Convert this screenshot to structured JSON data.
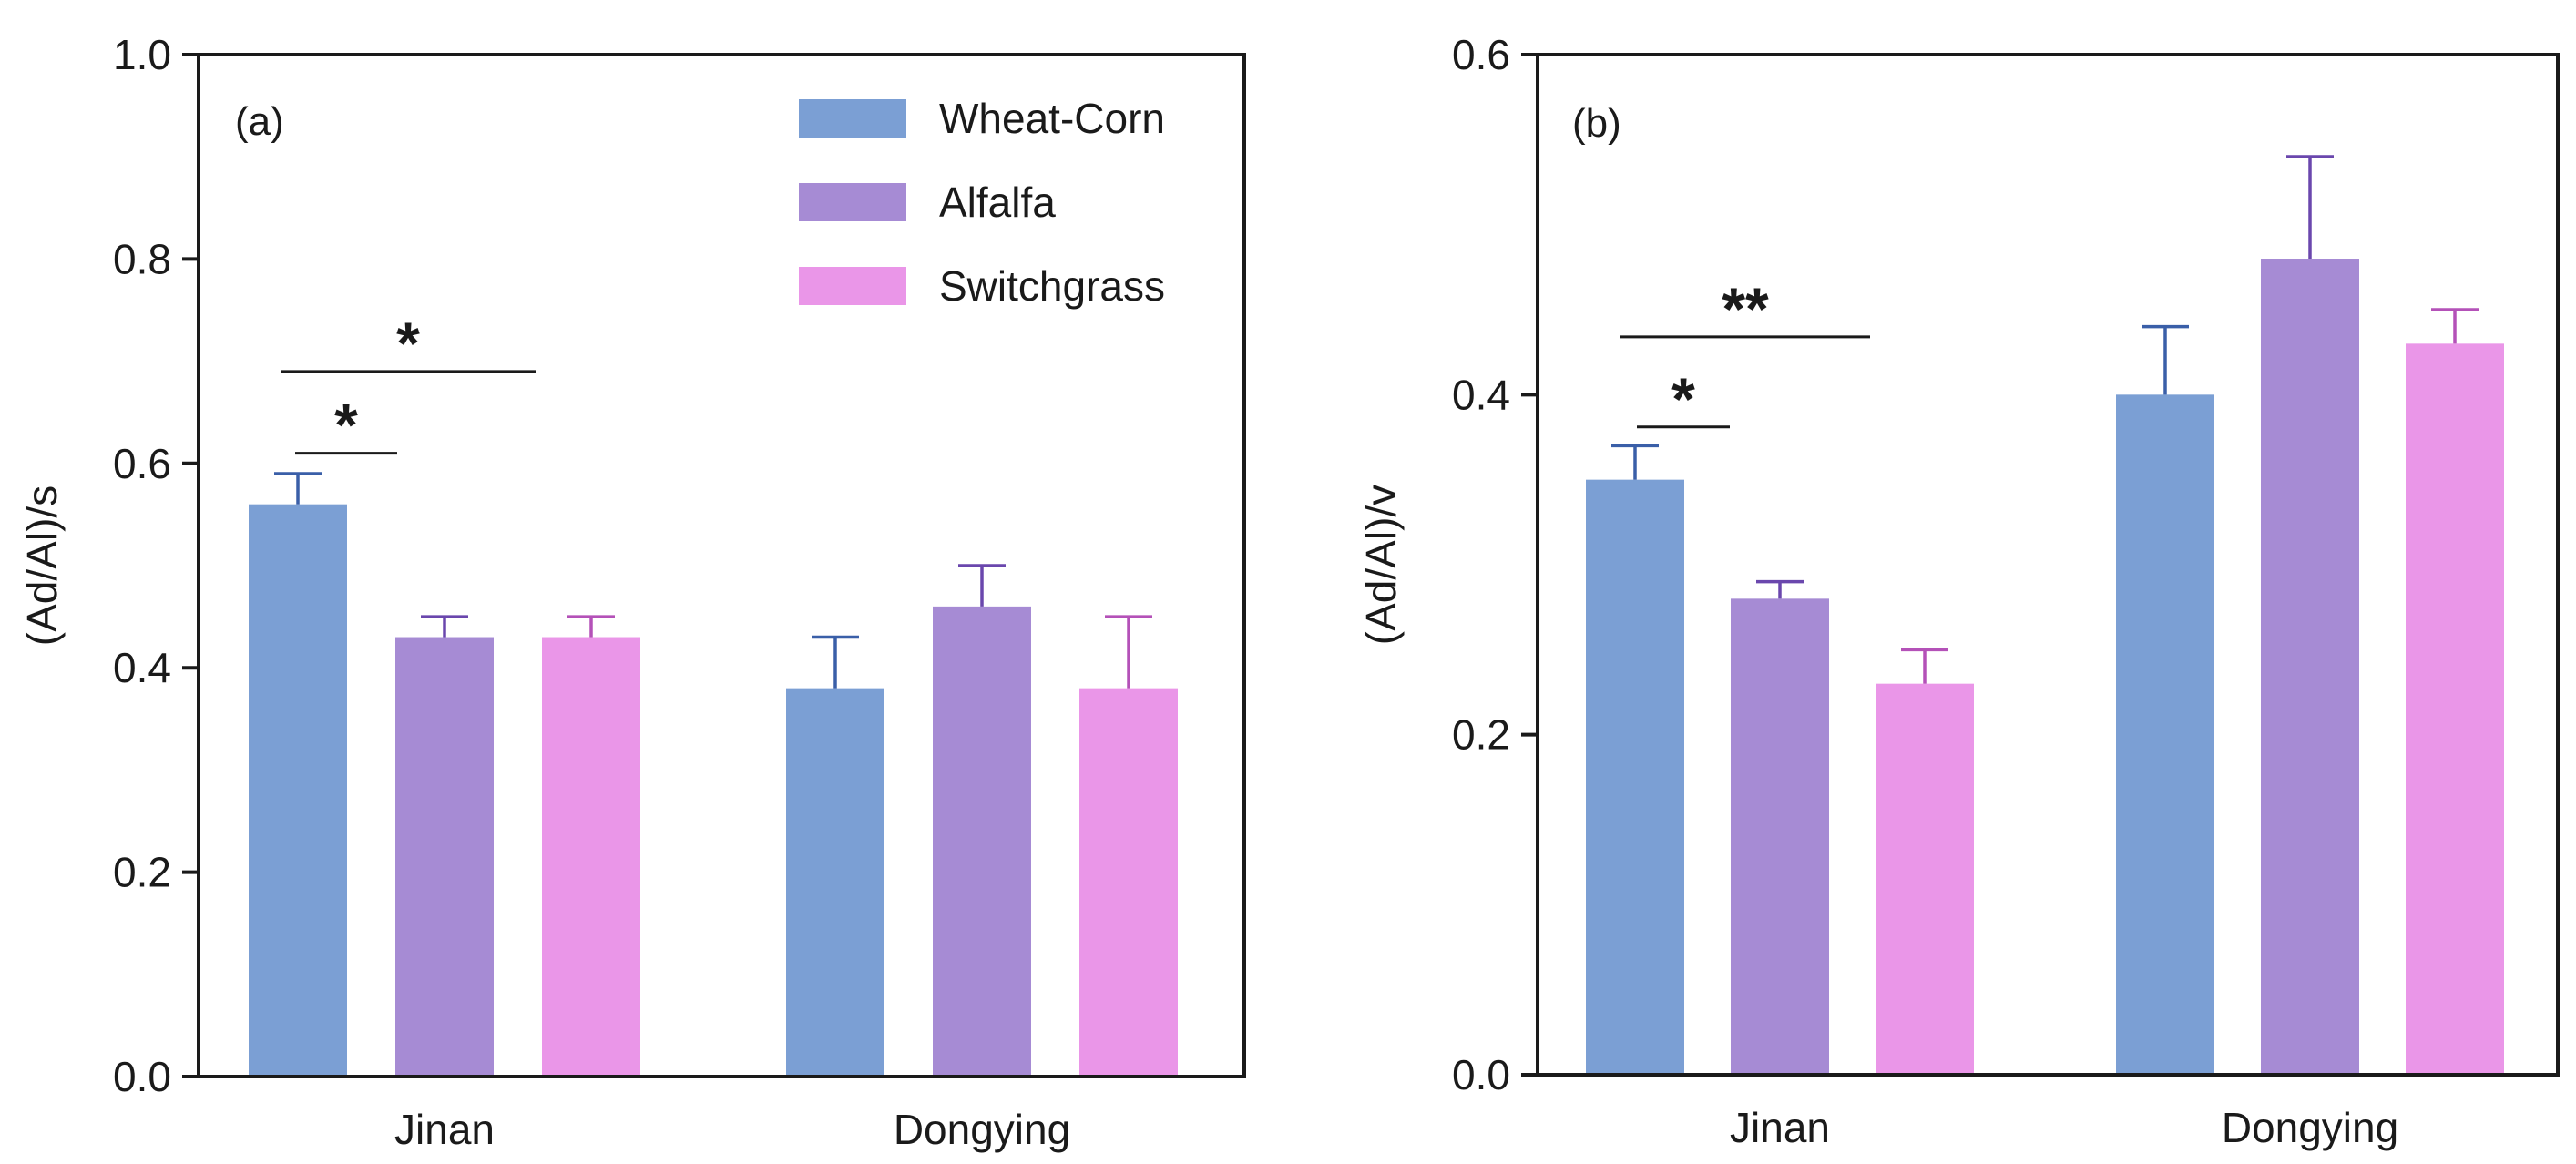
{
  "chart_data": [
    {
      "type": "bar",
      "panel_label": "(a)",
      "ylabel": "(Ad/Al)/s",
      "xlabel": "",
      "ylim": [
        0,
        1.0
      ],
      "yticks": [
        "0.0",
        "0.2",
        "0.4",
        "0.6",
        "0.8",
        "1.0"
      ],
      "categories": [
        "Jinan",
        "Dongying"
      ],
      "series": [
        {
          "name": "Wheat-Corn",
          "color": "#7b9fd4",
          "error_color": "#3a5fa8",
          "values": [
            0.56,
            0.38
          ],
          "errors": [
            0.03,
            0.05
          ]
        },
        {
          "name": "Alfalfa",
          "color": "#a68bd4",
          "error_color": "#6a47ad",
          "values": [
            0.43,
            0.46
          ],
          "errors": [
            0.02,
            0.04
          ]
        },
        {
          "name": "Switchgrass",
          "color": "#ea96e8",
          "error_color": "#b451b8",
          "values": [
            0.43,
            0.38
          ],
          "errors": [
            0.02,
            0.07
          ]
        }
      ],
      "legend": {
        "position": "top-right",
        "entries": [
          "Wheat-Corn",
          "Alfalfa",
          "Switchgrass"
        ]
      },
      "annotations": [
        {
          "text": "*",
          "category": "Jinan",
          "from_series": 0,
          "to_series": 1,
          "y": 0.61
        },
        {
          "text": "*",
          "category": "Jinan",
          "from_series": 0,
          "to_series": 2,
          "y": 0.69
        }
      ]
    },
    {
      "type": "bar",
      "panel_label": "(b)",
      "ylabel": "(Ad/Al)/v",
      "xlabel": "",
      "ylim": [
        0,
        0.6
      ],
      "yticks": [
        "0.0",
        "0.2",
        "0.4",
        "0.6"
      ],
      "categories": [
        "Jinan",
        "Dongying"
      ],
      "series": [
        {
          "name": "Wheat-Corn",
          "color": "#7b9fd4",
          "error_color": "#3a5fa8",
          "values": [
            0.35,
            0.4
          ],
          "errors": [
            0.02,
            0.04
          ]
        },
        {
          "name": "Alfalfa",
          "color": "#a68bd4",
          "error_color": "#6a47ad",
          "values": [
            0.28,
            0.48
          ],
          "errors": [
            0.01,
            0.06
          ]
        },
        {
          "name": "Switchgrass",
          "color": "#ea96e8",
          "error_color": "#b451b8",
          "values": [
            0.23,
            0.43
          ],
          "errors": [
            0.02,
            0.02
          ]
        }
      ],
      "annotations": [
        {
          "text": "*",
          "category": "Jinan",
          "from_series": 0,
          "to_series": 1,
          "y": 0.381
        },
        {
          "text": "**",
          "category": "Jinan",
          "from_series": 0,
          "to_series": 2,
          "y": 0.434
        }
      ]
    }
  ]
}
